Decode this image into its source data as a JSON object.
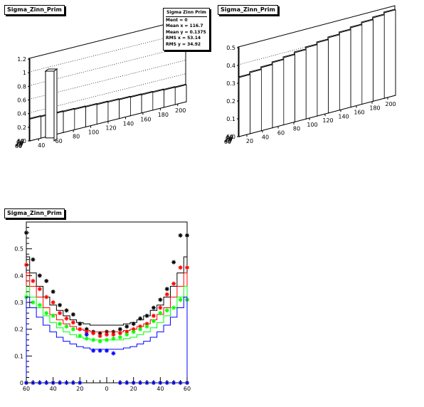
{
  "panels": {
    "top_left_title": "Sigma_Zinn_Prim",
    "top_right_title": "Sigma_Zinn_Prim",
    "bottom_title": "Sigma_Zinn_Prim"
  },
  "stats": {
    "title": "Sigma Zinn Prim",
    "rows": [
      "Ment = 0",
      "Mean x = 116.7",
      "Mean y = 0.1375",
      "RMS x = 53.14",
      "RMS y = 34.92"
    ]
  },
  "chart_data": [
    {
      "type": "lego",
      "title": "Sigma_Zinn_Prim",
      "x_ticks": [
        "40",
        "60",
        "80",
        "100",
        "120",
        "140",
        "160",
        "180",
        "200"
      ],
      "y_ticks": [
        "60",
        "40",
        "20",
        "0",
        "20",
        "40",
        "60"
      ],
      "z_ticks": [
        "0",
        "0.2",
        "0.4",
        "0.6",
        "0.8",
        "1",
        "1.2"
      ],
      "zlim": [
        0,
        1.2
      ],
      "spike_value": 1.0
    },
    {
      "type": "lego",
      "title": "Sigma_Zinn_Prim",
      "x_ticks": [
        "20",
        "40",
        "60",
        "80",
        "100",
        "120",
        "140",
        "160",
        "180",
        "200"
      ],
      "y_ticks": [
        "60",
        "40",
        "20",
        "0",
        "20",
        "40",
        "60"
      ],
      "z_ticks": [
        "0",
        "0.1",
        "0.2",
        "0.3",
        "0.4",
        "0.5"
      ],
      "zlim": [
        0,
        0.5
      ]
    },
    {
      "type": "line",
      "title": "Sigma_Zinn_Prim",
      "xlim": [
        -60,
        60
      ],
      "ylim": [
        0,
        0.6
      ],
      "x_ticks": [
        "60",
        "40",
        "20",
        "0",
        "20",
        "40",
        "60"
      ],
      "y_ticks": [
        "0",
        "0.1",
        "0.2",
        "0.3",
        "0.4",
        "0.5"
      ],
      "x": [
        -60,
        -55,
        -50,
        -45,
        -40,
        -35,
        -30,
        -25,
        -20,
        -15,
        -10,
        -5,
        0,
        5,
        10,
        15,
        20,
        25,
        30,
        35,
        40,
        45,
        50,
        55,
        60
      ],
      "series": [
        {
          "color": "#000000",
          "hist": [
            0.47,
            0.41,
            0.36,
            0.32,
            0.29,
            0.27,
            0.25,
            0.235,
            0.225,
            0.22,
            0.215,
            0.215,
            0.215,
            0.215,
            0.215,
            0.22,
            0.225,
            0.235,
            0.25,
            0.27,
            0.29,
            0.32,
            0.36,
            0.41,
            0.47
          ],
          "points": [
            0.56,
            0.46,
            0.4,
            0.38,
            0.34,
            0.29,
            0.27,
            0.255,
            0.22,
            0.2,
            0.19,
            0.185,
            0.19,
            0.19,
            0.2,
            0.21,
            0.22,
            0.24,
            0.25,
            0.28,
            0.31,
            0.35,
            0.45,
            0.55,
            0.55
          ]
        },
        {
          "color": "#ff0000",
          "hist": [
            0.41,
            0.36,
            0.32,
            0.28,
            0.255,
            0.235,
            0.22,
            0.21,
            0.2,
            0.195,
            0.19,
            0.19,
            0.19,
            0.19,
            0.19,
            0.195,
            0.2,
            0.21,
            0.22,
            0.235,
            0.255,
            0.28,
            0.32,
            0.36,
            0.41
          ],
          "points": [
            0.44,
            0.38,
            0.35,
            0.32,
            0.3,
            0.26,
            0.24,
            0.225,
            0.2,
            0.19,
            0.185,
            0.175,
            0.18,
            0.18,
            0.185,
            0.19,
            0.2,
            0.21,
            0.22,
            0.25,
            0.28,
            0.33,
            0.37,
            0.43,
            0.43
          ]
        },
        {
          "color": "#00ff00",
          "hist": [
            0.36,
            0.32,
            0.28,
            0.25,
            0.225,
            0.205,
            0.19,
            0.18,
            0.17,
            0.165,
            0.16,
            0.16,
            0.16,
            0.16,
            0.16,
            0.165,
            0.17,
            0.18,
            0.19,
            0.205,
            0.225,
            0.25,
            0.28,
            0.32,
            0.36
          ],
          "points": [
            0.32,
            0.3,
            0.29,
            0.26,
            0.25,
            0.22,
            0.21,
            0.2,
            0.175,
            0.165,
            0.16,
            0.155,
            0.16,
            0.165,
            0.17,
            0.18,
            0.19,
            0.2,
            0.21,
            0.23,
            0.26,
            0.27,
            0.28,
            0.31,
            0.31
          ]
        },
        {
          "color": "#0000ff",
          "hist": [
            0.32,
            0.28,
            0.245,
            0.215,
            0.19,
            0.17,
            0.155,
            0.145,
            0.135,
            0.13,
            0.125,
            0.125,
            0.125,
            0.125,
            0.125,
            0.13,
            0.135,
            0.145,
            0.155,
            0.17,
            0.19,
            0.215,
            0.245,
            0.28,
            0.32
          ],
          "points": [
            0.0,
            0.0,
            0.0,
            0.0,
            0.0,
            0.0,
            0.0,
            0.0,
            0.0,
            0.18,
            0.12,
            0.12,
            0.12,
            0.11,
            0.0,
            0.0,
            0.0,
            0.0,
            0.0,
            0.0,
            0.0,
            0.0,
            0.0,
            0.0,
            0.0
          ]
        }
      ]
    }
  ]
}
